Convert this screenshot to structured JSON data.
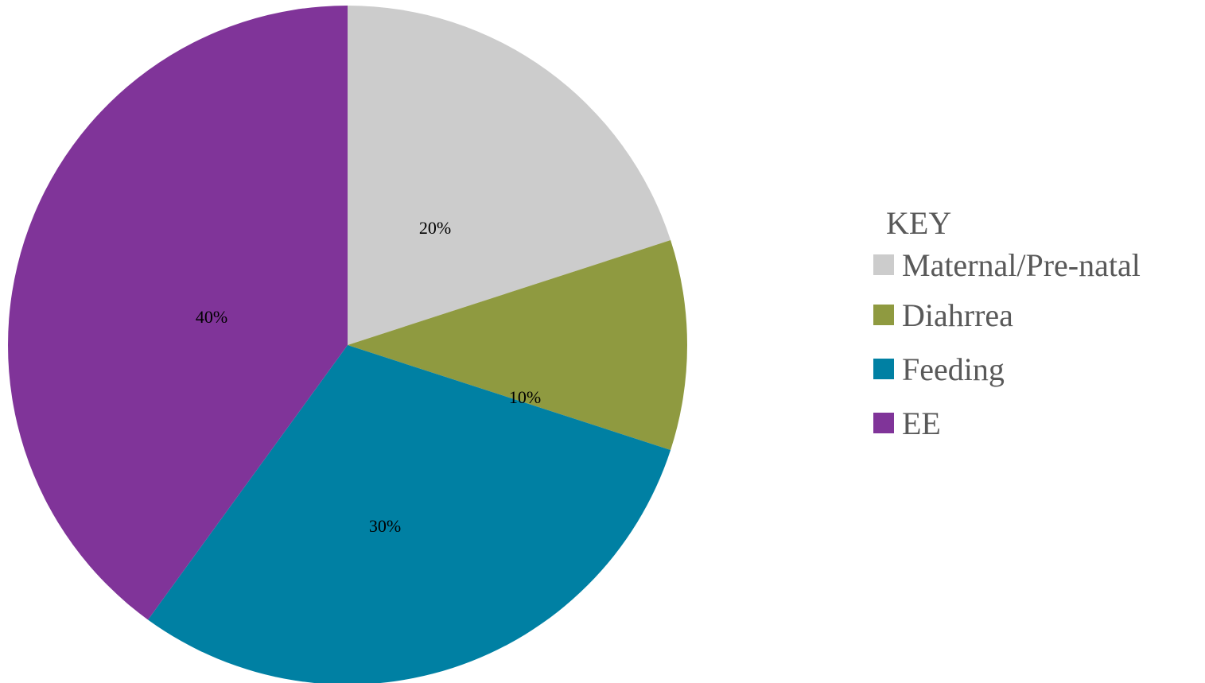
{
  "chart_data": {
    "type": "pie",
    "legend_title": "KEY",
    "legend_position": "right",
    "slices": [
      {
        "name": "Maternal/Pre-natal",
        "value": 20,
        "label": "20%",
        "color": "#cccccc"
      },
      {
        "name": "Diahrrea",
        "value": 10,
        "label": "10%",
        "color": "#8f9a40"
      },
      {
        "name": "Feeding",
        "value": 30,
        "label": "30%",
        "color": "#0080a3"
      },
      {
        "name": "EE",
        "value": 40,
        "label": "40%",
        "color": "#803499"
      }
    ]
  }
}
